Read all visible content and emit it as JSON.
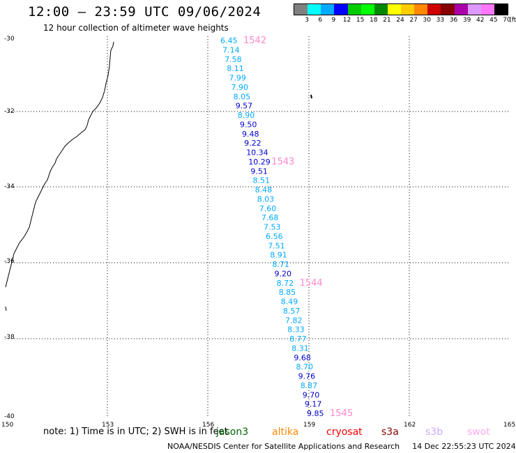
{
  "header": {
    "title": "12:00 – 23:59 UTC 09/06/2024",
    "subtitle": "12 hour collection of altimeter wave heights"
  },
  "legend": {
    "unit": "(ft)",
    "colors": [
      "#808080",
      "#00ffff",
      "#00aaff",
      "#0000ff",
      "#00cc00",
      "#00ff00",
      "#008800",
      "#ffff00",
      "#ffcc00",
      "#ff8800",
      "#cc0000",
      "#880000",
      "#aa00aa",
      "#dd99ff",
      "#ff77ff",
      "#000000"
    ],
    "labels": [
      "3",
      "6",
      "9",
      "12",
      "15",
      "18",
      "21",
      "24",
      "27",
      "30",
      "33",
      "36",
      "39",
      "42",
      "45",
      "70"
    ]
  },
  "axes": {
    "lat_labels": [
      "-30",
      "-32",
      "-34",
      "-36",
      "-38",
      "-40"
    ],
    "lon_labels": [
      "150",
      "153",
      "156",
      "159",
      "162",
      "165"
    ]
  },
  "wave_heights": [
    {
      "value": "6.45",
      "color": "#00aaff"
    },
    {
      "value": "7.14",
      "color": "#00aaff"
    },
    {
      "value": "7.58",
      "color": "#00aaff"
    },
    {
      "value": "8.11",
      "color": "#00aaff"
    },
    {
      "value": "7.99",
      "color": "#00aaff"
    },
    {
      "value": "7.90",
      "color": "#00aaff"
    },
    {
      "value": "8.05",
      "color": "#00aaff"
    },
    {
      "value": "9.57",
      "color": "#0000cc"
    },
    {
      "value": "8.90",
      "color": "#00aaff"
    },
    {
      "value": "9.50",
      "color": "#0000cc"
    },
    {
      "value": "9.48",
      "color": "#0000cc"
    },
    {
      "value": "9.22",
      "color": "#0000cc"
    },
    {
      "value": "10.34",
      "color": "#0000cc"
    },
    {
      "value": "10.29",
      "color": "#0000cc"
    },
    {
      "value": "9.51",
      "color": "#0000cc"
    },
    {
      "value": "8.51",
      "color": "#00aaff"
    },
    {
      "value": "8.48",
      "color": "#00aaff"
    },
    {
      "value": "8.03",
      "color": "#00aaff"
    },
    {
      "value": "7.60",
      "color": "#00aaff"
    },
    {
      "value": "7.68",
      "color": "#00aaff"
    },
    {
      "value": "7.53",
      "color": "#00aaff"
    },
    {
      "value": "6.56",
      "color": "#00aaff"
    },
    {
      "value": "7.51",
      "color": "#00aaff"
    },
    {
      "value": "8.91",
      "color": "#00aaff"
    },
    {
      "value": "8.71",
      "color": "#00aaff"
    },
    {
      "value": "9.20",
      "color": "#0000cc"
    },
    {
      "value": "8.72",
      "color": "#00aaff"
    },
    {
      "value": "8.85",
      "color": "#00aaff"
    },
    {
      "value": "8.49",
      "color": "#00aaff"
    },
    {
      "value": "8.57",
      "color": "#00aaff"
    },
    {
      "value": "7.82",
      "color": "#00aaff"
    },
    {
      "value": "8.33",
      "color": "#00aaff"
    },
    {
      "value": "8.77",
      "color": "#00aaff"
    },
    {
      "value": "8.31",
      "color": "#00aaff"
    },
    {
      "value": "9.68",
      "color": "#0000cc"
    },
    {
      "value": "8.70",
      "color": "#00aaff"
    },
    {
      "value": "9.76",
      "color": "#0000cc"
    },
    {
      "value": "8.87",
      "color": "#00aaff"
    },
    {
      "value": "9.70",
      "color": "#0000cc"
    },
    {
      "value": "9.17",
      "color": "#0000cc"
    },
    {
      "value": "9.85",
      "color": "#0000cc"
    }
  ],
  "time_markers": [
    {
      "label": "1542",
      "color": "#ff88cc"
    },
    {
      "label": "1543",
      "color": "#ff88cc"
    },
    {
      "label": "1544",
      "color": "#ff88cc"
    },
    {
      "label": "1545",
      "color": "#ff88cc"
    }
  ],
  "footer": {
    "note": "note: 1) Time is in UTC; 2) SWH is in feet",
    "satellites": [
      {
        "name": "jason3",
        "color": "#006600"
      },
      {
        "name": "altika",
        "color": "#ff8800"
      },
      {
        "name": "cryosat",
        "color": "#ff0000"
      },
      {
        "name": "s3a",
        "color": "#880000"
      },
      {
        "name": "s3b",
        "color": "#ccaaff"
      },
      {
        "name": "swot",
        "color": "#ffaaee"
      }
    ],
    "credit": "NOAA/NESDIS Center for Satellite Applications and Research",
    "timestamp": "14 Dec 22:55:23 UTC 2024"
  }
}
